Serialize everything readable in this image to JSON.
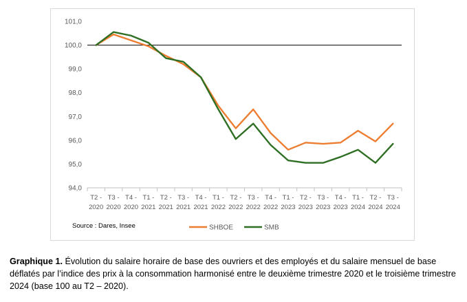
{
  "chart_data": {
    "type": "line",
    "title": "",
    "xlabel": "",
    "ylabel": "",
    "categories": [
      [
        "T2 -",
        "2020"
      ],
      [
        "T3 -",
        "2020"
      ],
      [
        "T4 -",
        "2020"
      ],
      [
        "T1 -",
        "2021"
      ],
      [
        "T2 -",
        "2021"
      ],
      [
        "T3 -",
        "2021"
      ],
      [
        "T4 -",
        "2021"
      ],
      [
        "T1 -",
        "2022"
      ],
      [
        "T2 -",
        "2022"
      ],
      [
        "T3 -",
        "2022"
      ],
      [
        "T4 -",
        "2022"
      ],
      [
        "T1 -",
        "2023"
      ],
      [
        "T2 -",
        "2023"
      ],
      [
        "T3 -",
        "2023"
      ],
      [
        "T4 -",
        "2023"
      ],
      [
        "T1 -",
        "2024"
      ],
      [
        "T2 -",
        "2024"
      ],
      [
        "T3 -",
        "2024"
      ]
    ],
    "ylim": [
      94.0,
      101.0
    ],
    "yticks": [
      "94,0",
      "95,0",
      "96,0",
      "97,0",
      "98,0",
      "99,0",
      "100,0",
      "101,0"
    ],
    "reference_line": 100.0,
    "grid": false,
    "legend_position": "bottom",
    "series": [
      {
        "name": "SHBOE",
        "color": "#ED7D31",
        "values": [
          100.0,
          100.45,
          100.2,
          99.95,
          99.55,
          99.2,
          98.65,
          97.45,
          96.5,
          97.3,
          96.3,
          95.6,
          95.9,
          95.85,
          95.9,
          96.4,
          95.95,
          96.7
        ]
      },
      {
        "name": "SMB",
        "color": "#2E6F24",
        "values": [
          100.0,
          100.55,
          100.4,
          100.1,
          99.45,
          99.3,
          98.65,
          97.3,
          96.05,
          96.7,
          95.8,
          95.15,
          95.05,
          95.05,
          95.3,
          95.6,
          95.05,
          95.85
        ]
      }
    ],
    "source": "Source : Dares, Insee"
  },
  "caption": {
    "label": "Graphique 1.",
    "text": " Évolution du salaire horaire de base des ouvriers et des employés et du salaire mensuel de base déflatés par l’indice des prix à la consommation harmonisé entre le deuxième trimestre 2020 et le troisième trimestre 2024 (base 100 au T2 – 2020)."
  }
}
